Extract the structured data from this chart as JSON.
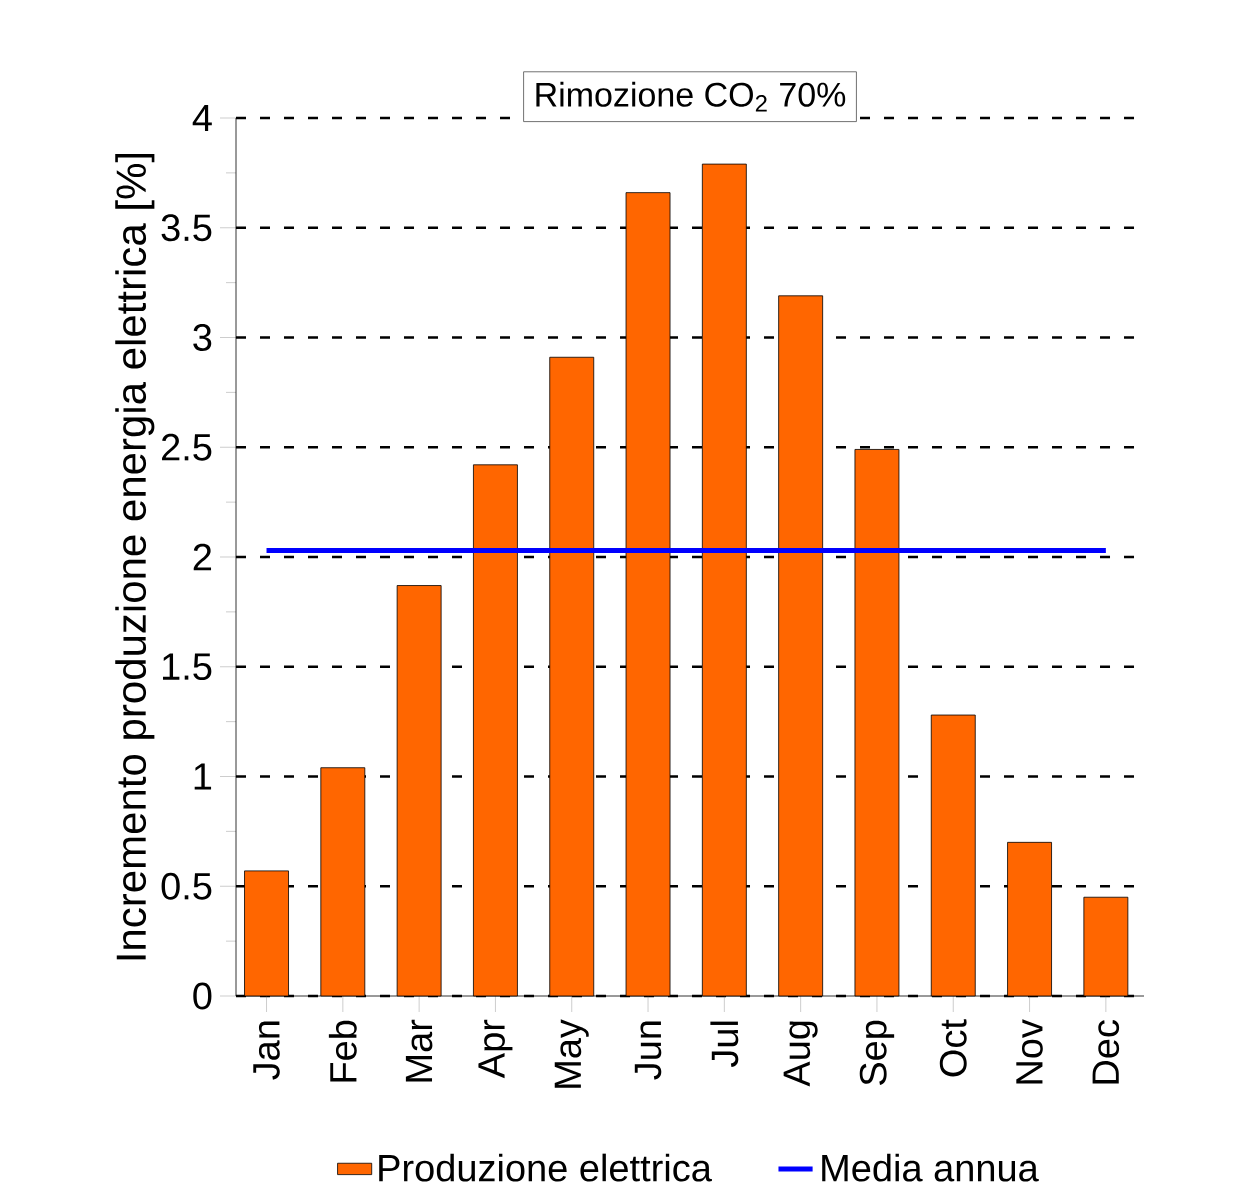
{
  "chart_data": {
    "type": "bar",
    "title": "Rimozione CO$_{2}$ 70%",
    "ylabel": "Incremento produzione energia elettrica [%]",
    "categories": [
      "Jan",
      "Feb",
      "Mar",
      "Apr",
      "May",
      "Jun",
      "Jul",
      "Aug",
      "Sep",
      "Oct",
      "Nov",
      "Dec"
    ],
    "series": [
      {
        "name": "Produzione elettrica",
        "color": "#ff6600",
        "values": [
          0.57,
          1.04,
          1.87,
          2.42,
          2.91,
          3.66,
          3.79,
          3.19,
          2.49,
          1.28,
          0.7,
          0.45
        ]
      }
    ],
    "ref_lines": [
      {
        "axis": "y",
        "value": 2.03,
        "label": "Media annua",
        "color": "#0000ff",
        "line_style": "solid"
      }
    ],
    "ylim": [
      0,
      4
    ],
    "yticks": [
      0,
      0.5,
      1,
      1.5,
      2,
      2.5,
      3,
      3.5,
      4
    ],
    "grid": "y",
    "legend": "bottom"
  }
}
